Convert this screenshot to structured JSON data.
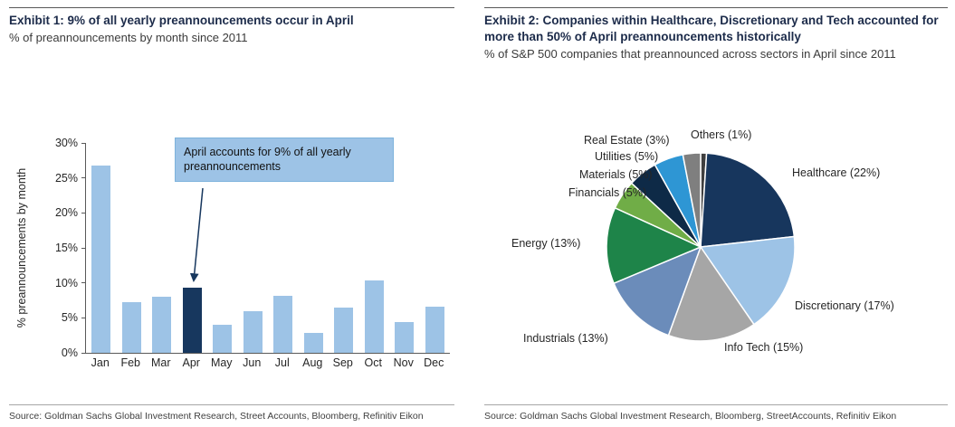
{
  "exhibit1": {
    "title": "Exhibit 1: 9% of all yearly preannouncements occur in April",
    "subtitle": "% of preannouncements by month since 2011",
    "annotation": "April accounts for 9% of all yearly preannouncements",
    "source": "Source: Goldman Sachs Global Investment Research, Street Accounts, Bloomberg, Refinitiv Eikon"
  },
  "exhibit2": {
    "title": "Exhibit 2: Companies within Healthcare, Discretionary and Tech accounted for more than 50% of April preannouncements historically",
    "subtitle": "% of S&P 500 companies that preannounced across sectors in April since 2011",
    "source": "Source: Goldman Sachs Global Investment Research, Bloomberg, StreetAccounts, Refinitiv Eikon"
  },
  "chart_data": [
    {
      "type": "bar",
      "title": "% of preannouncements by month since 2011",
      "categories": [
        "Jan",
        "Feb",
        "Mar",
        "Apr",
        "May",
        "Jun",
        "Jul",
        "Aug",
        "Sep",
        "Oct",
        "Nov",
        "Dec"
      ],
      "values": [
        26.8,
        7.3,
        8.0,
        9.3,
        4.0,
        5.9,
        8.2,
        2.9,
        6.5,
        10.4,
        4.4,
        6.6
      ],
      "highlight_index": 3,
      "bar_color": "#9dc3e6",
      "highlight_color": "#17375e",
      "xlabel": "",
      "ylabel": "% preannouncements by month",
      "ylim": [
        0,
        30
      ],
      "yticks": [
        "0%",
        "5%",
        "10%",
        "15%",
        "20%",
        "25%",
        "30%"
      ],
      "grid": false,
      "annotation": "April accounts for 9% of all yearly preannouncements"
    },
    {
      "type": "pie",
      "title": "% of S&P 500 companies that preannounced across sectors in April since 2011",
      "slices": [
        {
          "name": "Others",
          "pct": 1,
          "label": "Others (1%)",
          "color": "#3f3f3f"
        },
        {
          "name": "Healthcare",
          "pct": 22,
          "label": "Healthcare (22%)",
          "color": "#17365d"
        },
        {
          "name": "Discretionary",
          "pct": 17,
          "label": "Discretionary (17%)",
          "color": "#9dc3e6"
        },
        {
          "name": "Info Tech",
          "pct": 15,
          "label": "Info Tech (15%)",
          "color": "#a6a6a6"
        },
        {
          "name": "Industrials",
          "pct": 13,
          "label": "Industrials (13%)",
          "color": "#6b8cba"
        },
        {
          "name": "Energy",
          "pct": 13,
          "label": "Energy (13%)",
          "color": "#1e8449"
        },
        {
          "name": "Financials",
          "pct": 5,
          "label": "Financials (5%)",
          "color": "#70ad47"
        },
        {
          "name": "Materials",
          "pct": 5,
          "label": "Materials (5%)",
          "color": "#0e2a47"
        },
        {
          "name": "Utilities",
          "pct": 5,
          "label": "Utilities (5%)",
          "color": "#2e96d4"
        },
        {
          "name": "Real Estate",
          "pct": 3,
          "label": "Real Estate (3%)",
          "color": "#7f7f7f"
        }
      ]
    }
  ]
}
